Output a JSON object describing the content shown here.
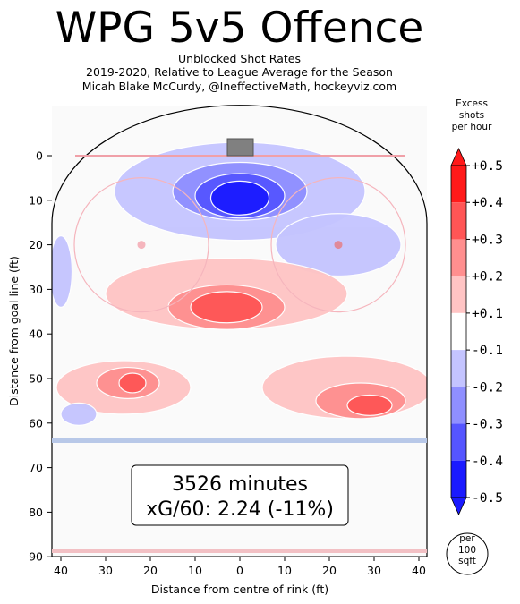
{
  "header": {
    "title": "WPG 5v5 Offence",
    "subtitle_lines": [
      "Unblocked Shot Rates",
      "2019-2020, Relative to League Average for the Season",
      "Micah Blake McCurdy, @IneffectiveMath, hockeyviz.com"
    ]
  },
  "chart_data": {
    "type": "heatmap",
    "xlabel": "Distance from centre of rink (ft)",
    "ylabel": "Distance from goal line (ft)",
    "xlim": [
      -42.5,
      42.5
    ],
    "ylim": [
      90,
      -11
    ],
    "x_axis_reversed_labels": true,
    "x_ticks": [
      40,
      30,
      20,
      10,
      0,
      10,
      20,
      30,
      40
    ],
    "y_ticks": [
      0,
      10,
      20,
      30,
      40,
      50,
      60,
      70,
      80,
      90
    ],
    "grid": false,
    "summary_box": {
      "line1": "3526 minutes",
      "line2": "xG/60: 2.24 (-11%)"
    },
    "colorbar": {
      "title_lines": [
        "Excess",
        "shots",
        "per hour"
      ],
      "unit_note_lines": [
        "per",
        "100",
        "sqft"
      ],
      "tick_labels": [
        "+0.5",
        "+0.4",
        "+0.3",
        "+0.2",
        "+0.1",
        "-0.1",
        "-0.2",
        "-0.3",
        "-0.4",
        "-0.5"
      ],
      "levels": [
        0.5,
        0.4,
        0.3,
        0.2,
        0.1,
        -0.1,
        -0.2,
        -0.3,
        -0.4,
        -0.5
      ],
      "colors": [
        "#ff1a1a",
        "#ff5555",
        "#ff8f8f",
        "#ffc4c4",
        "#ffffff",
        "#c4c4ff",
        "#8f8fff",
        "#5555ff",
        "#1a1aff"
      ]
    },
    "regions": [
      {
        "name": "crease blue outer",
        "cx": 0,
        "cy": 8,
        "rx": 28,
        "ry": 11,
        "value": -0.15
      },
      {
        "name": "crease blue mid",
        "cx": 0,
        "cy": 8,
        "rx": 15,
        "ry": 6.5,
        "value": -0.25
      },
      {
        "name": "crease blue inner",
        "cx": 0,
        "cy": 9,
        "rx": 10,
        "ry": 5,
        "value": -0.35
      },
      {
        "name": "crease blue core",
        "cx": 0,
        "cy": 9.5,
        "rx": 6.5,
        "ry": 3.8,
        "value": -0.45
      },
      {
        "name": "left point blue",
        "cx": -40,
        "cy": 26,
        "rx": 2.5,
        "ry": 8,
        "value": -0.15
      },
      {
        "name": "right side blue",
        "cx": 22,
        "cy": 20,
        "rx": 14,
        "ry": 7,
        "value": -0.15
      },
      {
        "name": "slot red outer",
        "cx": -3,
        "cy": 31,
        "rx": 27,
        "ry": 8,
        "value": 0.15
      },
      {
        "name": "slot red mid",
        "cx": -3,
        "cy": 34,
        "rx": 13,
        "ry": 5,
        "value": 0.25
      },
      {
        "name": "slot red inner",
        "cx": -3,
        "cy": 34,
        "rx": 8,
        "ry": 3.5,
        "value": 0.35
      },
      {
        "name": "left faceoff red outer",
        "cx": -26,
        "cy": 52,
        "rx": 15,
        "ry": 6,
        "value": 0.15
      },
      {
        "name": "left faceoff red mid",
        "cx": -25,
        "cy": 51,
        "rx": 7,
        "ry": 3.5,
        "value": 0.25
      },
      {
        "name": "left faceoff red inner",
        "cx": -24,
        "cy": 51,
        "rx": 3,
        "ry": 2.2,
        "value": 0.35
      },
      {
        "name": "right point red outer",
        "cx": 24,
        "cy": 52,
        "rx": 19,
        "ry": 7,
        "value": 0.15
      },
      {
        "name": "right point red mid",
        "cx": 27,
        "cy": 55,
        "rx": 10,
        "ry": 4,
        "value": 0.25
      },
      {
        "name": "right point red inner",
        "cx": 29,
        "cy": 56,
        "rx": 5,
        "ry": 2.3,
        "value": 0.35
      },
      {
        "name": "left low blue",
        "cx": -36,
        "cy": 58,
        "rx": 4,
        "ry": 2.5,
        "value": -0.15
      }
    ]
  }
}
